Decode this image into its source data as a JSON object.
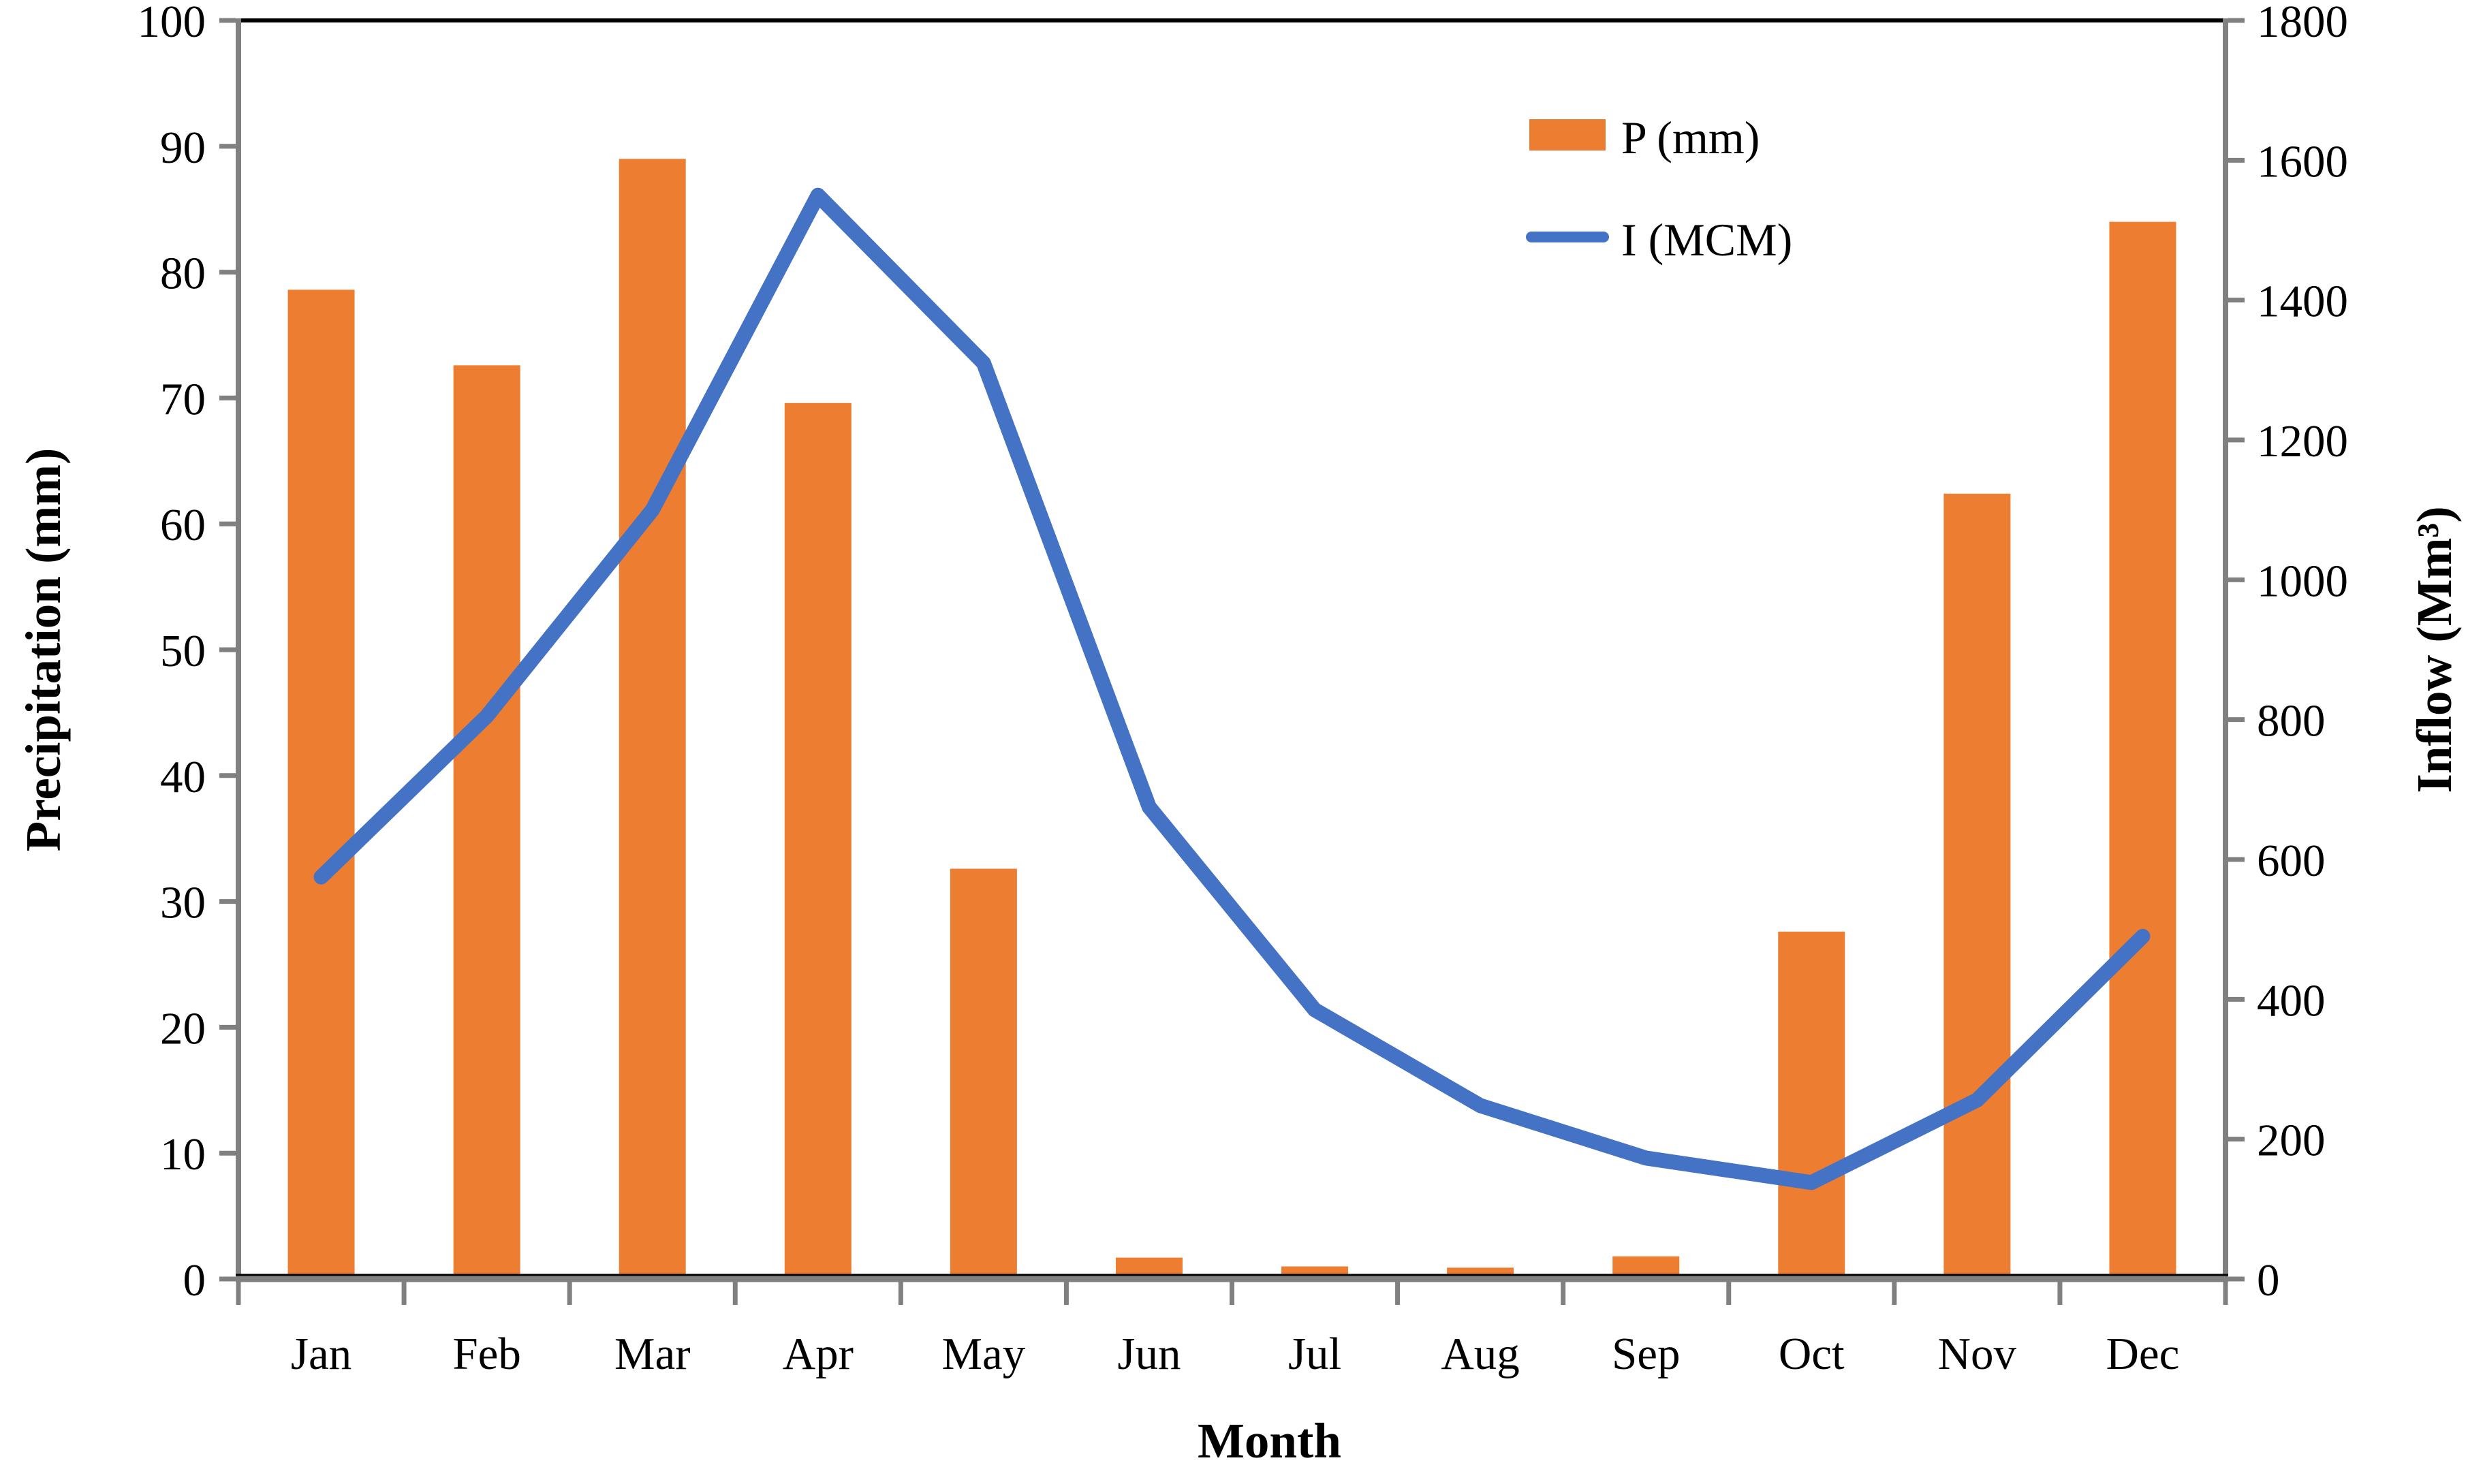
{
  "chart_data": {
    "type": "bar",
    "subtype": "combo-bar-line",
    "title": "",
    "categories": [
      "Jan",
      "Feb",
      "Mar",
      "Apr",
      "May",
      "Jun",
      "Jul",
      "Aug",
      "Sep",
      "Oct",
      "Nov",
      "Dec"
    ],
    "series": [
      {
        "name": "P (mm)",
        "type": "bar",
        "axis": "left",
        "color": "#ED7D31",
        "values": [
          78.6,
          72.6,
          89.0,
          69.6,
          32.6,
          1.7,
          1.0,
          0.9,
          1.8,
          27.6,
          62.4,
          84.0
        ]
      },
      {
        "name": "I (MCM)",
        "type": "line",
        "axis": "right",
        "color": "#4472C4",
        "values": [
          575,
          805,
          1100,
          1550,
          1310,
          675,
          385,
          248,
          173,
          138,
          256,
          490
        ]
      }
    ],
    "left_axis": {
      "label": "Precipitation (mm)",
      "min": 0,
      "max": 100,
      "step": 10,
      "tick_labels": [
        "0",
        "10",
        "20",
        "30",
        "40",
        "50",
        "60",
        "70",
        "80",
        "90",
        "100"
      ]
    },
    "right_axis": {
      "label": "Inflow (Mm³)",
      "min": 0,
      "max": 1800,
      "step": 200,
      "tick_labels": [
        "0",
        "200",
        "400",
        "600",
        "800",
        "1000",
        "1200",
        "1400",
        "1600",
        "1800"
      ]
    },
    "xlabel": "Month",
    "grid": "off",
    "legend_position": "inside-top-right",
    "legend_entries": [
      "P (mm)",
      "I (MCM)"
    ]
  },
  "colors": {
    "bar": "#ED7D31",
    "line": "#4472C4",
    "axis_line": "#808080",
    "frame": "#000000",
    "text": "#000000",
    "background": "#FFFFFF"
  }
}
